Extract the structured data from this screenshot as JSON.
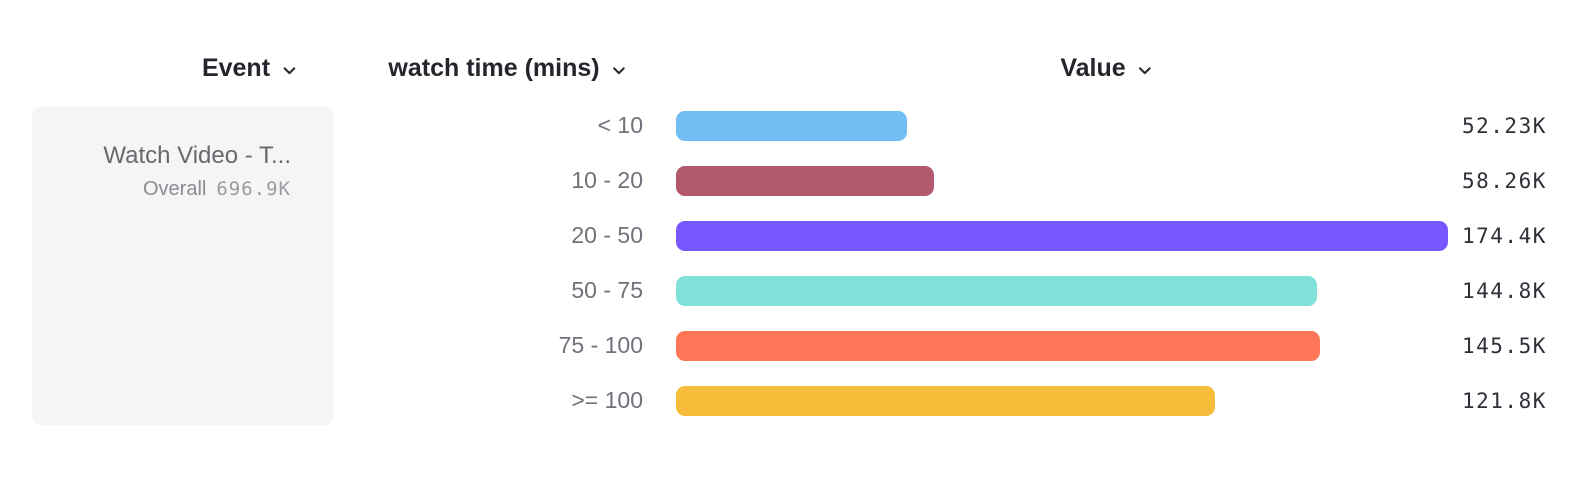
{
  "columns": {
    "event": {
      "label": "Event"
    },
    "breakdown": {
      "label": "watch time (mins)"
    },
    "value": {
      "label": "Value"
    }
  },
  "event_card": {
    "name": "Watch Video - T...",
    "overall_label": "Overall",
    "overall_value": "696.9K"
  },
  "icons": {
    "column_dropdown": "chevron-down-icon"
  },
  "chart_data": {
    "type": "bar",
    "orientation": "horizontal",
    "title": "",
    "xlabel": "Value",
    "ylabel": "watch time (mins)",
    "categories": [
      "< 10",
      "10 - 20",
      "20 - 50",
      "50 - 75",
      "75 - 100",
      ">= 100"
    ],
    "values": [
      52230,
      58260,
      174400,
      144800,
      145500,
      121800
    ],
    "value_labels": [
      "52.23K",
      "58.26K",
      "174.4K",
      "144.8K",
      "145.5K",
      "121.8K"
    ],
    "bar_colors": [
      "#72BEF4",
      "#B2596E",
      "#7856FF",
      "#80E1D9",
      "#FF7557",
      "#F8BC3B"
    ],
    "xlim": [
      0,
      174400
    ],
    "grid": false,
    "legend": false
  }
}
